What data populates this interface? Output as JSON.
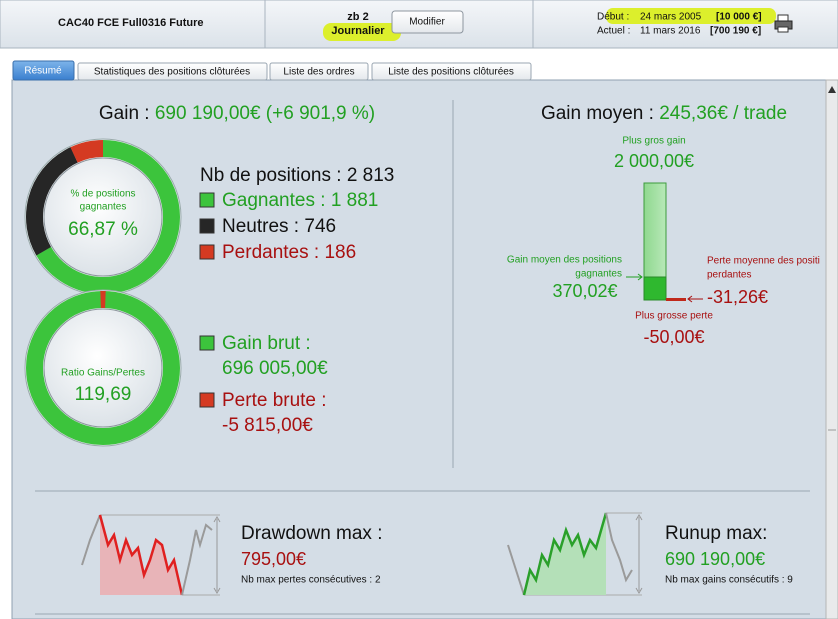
{
  "header": {
    "instrument": "CAC40 FCE Full0316 Future",
    "strategy": "zb 2",
    "timeframe": "Journalier",
    "button": "Modifier",
    "start": {
      "label": "Début :",
      "date": "24 mars 2005",
      "capital": "[10 000 €]"
    },
    "current": {
      "label": "Actuel :",
      "date": "11 mars 2016",
      "capital": "[700 190 €]"
    }
  },
  "tabs": [
    "Résumé",
    "Statistiques des positions clôturées",
    "Liste des ordres",
    "Liste des positions clôturées"
  ],
  "summary": {
    "gain": {
      "label": "Gain :",
      "value": "690 190,00€ (+6 901,9 %)"
    },
    "win_ratio": {
      "label": [
        "% de positions",
        "gagnantes"
      ],
      "value": "66,87 %"
    },
    "positions": {
      "label": "Nb de positions :",
      "total": "2 813",
      "winners": {
        "label": "Gagnantes :",
        "value": "1 881"
      },
      "neutral": {
        "label": "Neutres :",
        "value": "746"
      },
      "losers": {
        "label": "Perdantes :",
        "value": "186"
      }
    },
    "profit_ratio": {
      "label": "Ratio Gains/Pertes",
      "value": "119,69"
    },
    "gross_gain": {
      "label": "Gain brut :",
      "value": "696 005,00€"
    },
    "gross_loss": {
      "label": "Perte brute :",
      "value": "-5 815,00€"
    }
  },
  "average": {
    "label": "Gain moyen :",
    "value": "245,36€ / trade",
    "best": {
      "label": "Plus gros gain",
      "value": "2 000,00€"
    },
    "avg_win": {
      "label": [
        "Gain moyen des positions",
        "gagnantes"
      ],
      "value": "370,02€"
    },
    "avg_loss": {
      "label": [
        "Perte moyenne des positi",
        "perdantes"
      ],
      "value": "-31,26€"
    },
    "worst": {
      "label": "Plus grosse perte",
      "value": "-50,00€"
    }
  },
  "drawdown": {
    "title": "Drawdown max :",
    "value": "795,00€",
    "note": "Nb max pertes consécutives : 2"
  },
  "runup": {
    "title": "Runup max:",
    "value": "690 190,00€",
    "note": "Nb max gains consécutifs : 9"
  }
}
